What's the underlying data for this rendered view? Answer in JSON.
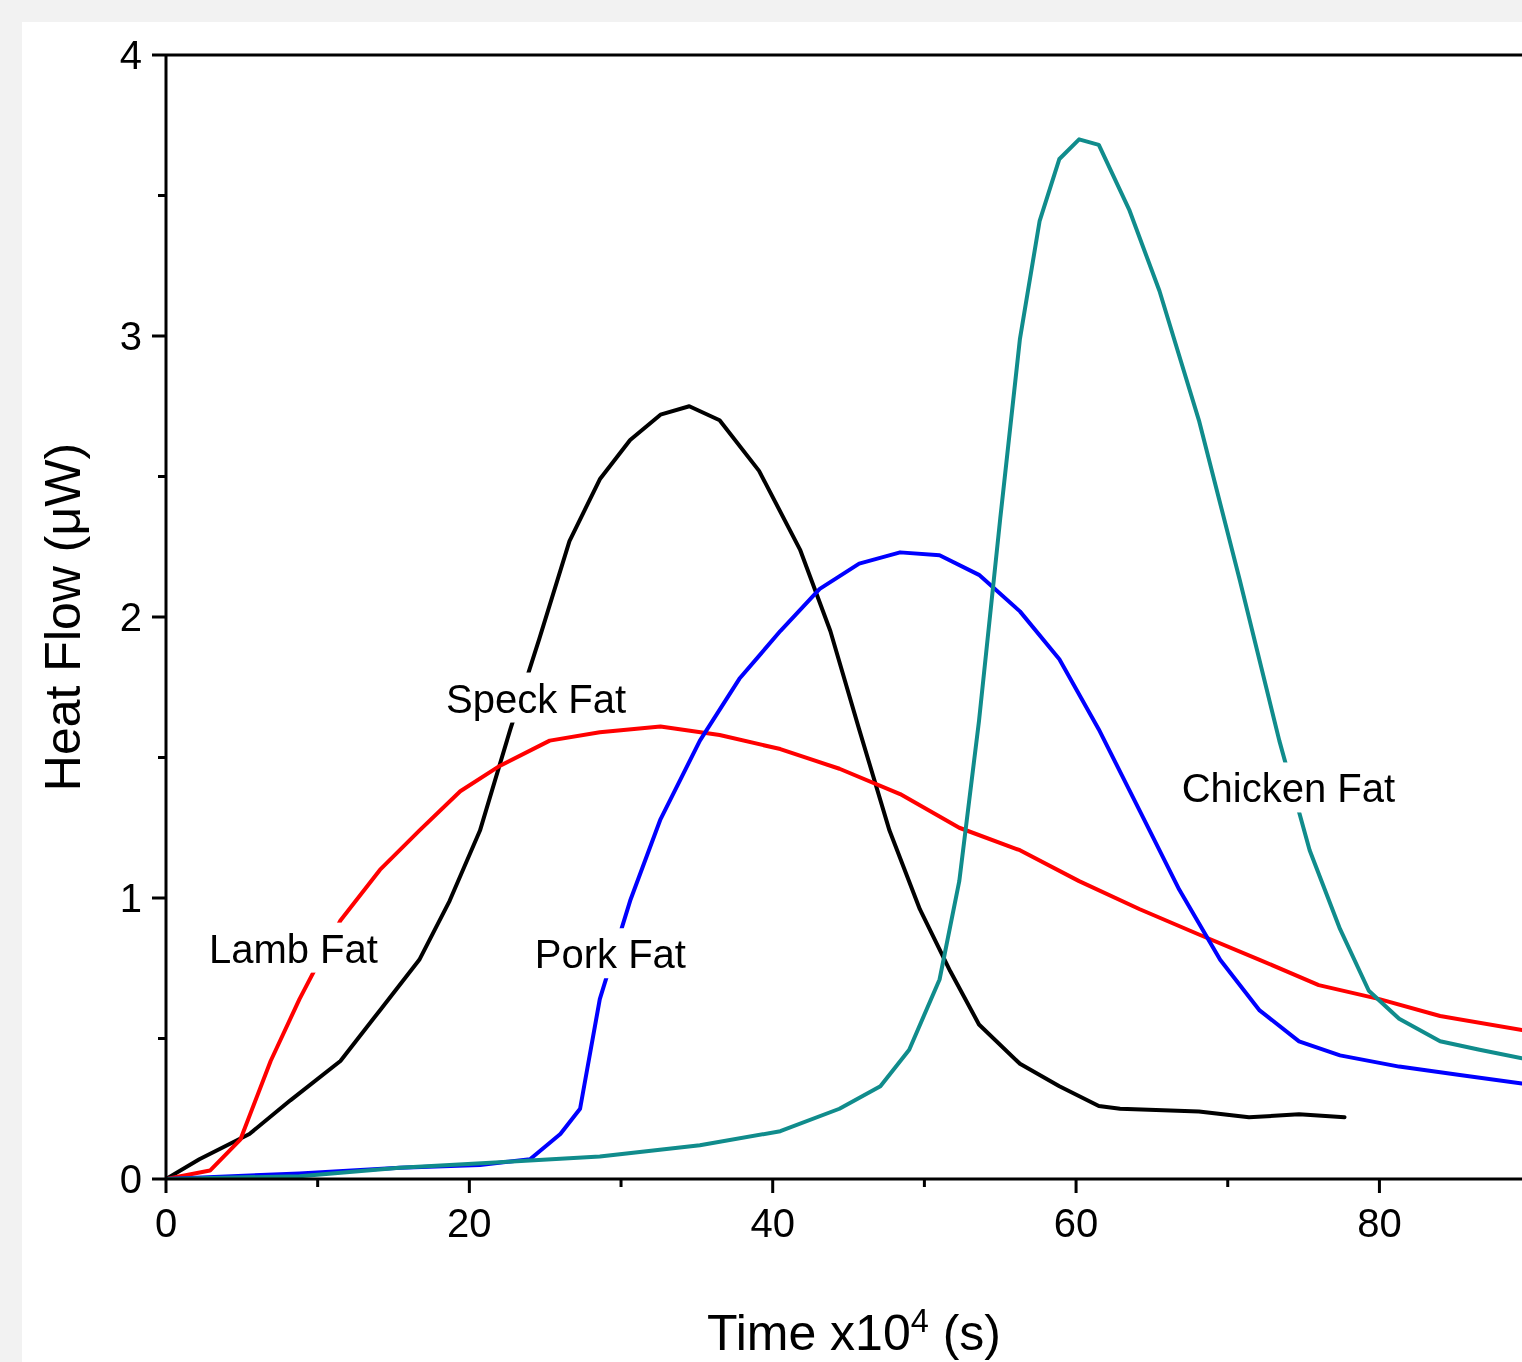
{
  "chart_data": {
    "type": "line",
    "xlabel": "Time x10$^{4}$ (s)",
    "ylabel": "Heat Flow (μW)",
    "xlim": [
      0,
      89.4
    ],
    "ylim": [
      0,
      4
    ],
    "xticks": [
      0,
      {
        "value": 10,
        "label": null
      },
      20,
      {
        "value": 30,
        "label": null
      },
      40,
      {
        "value": 50,
        "label": null
      },
      60,
      {
        "value": 70,
        "label": null
      },
      80
    ],
    "yticks": [
      0,
      {
        "value": 0.5,
        "label": null
      },
      1,
      {
        "value": 1.5,
        "label": null
      },
      2,
      {
        "value": 2.5,
        "label": null
      },
      3,
      {
        "value": 3.5,
        "label": null
      },
      4
    ],
    "grid": false,
    "marker": "none",
    "line_style": "solid",
    "series": [
      {
        "name": "Speck Fat",
        "color": "#000000",
        "x": [
          0,
          2.2,
          5.5,
          8.2,
          11.5,
          14.1,
          16.7,
          18.7,
          20.7,
          22.7,
          24.6,
          26.6,
          28.6,
          30.6,
          32.6,
          34.5,
          36.5,
          39.1,
          41.8,
          43.8,
          45.7,
          47.7,
          49.7,
          51.7,
          53.6,
          56.3,
          58.9,
          61.5,
          62.9,
          68.1,
          71.4,
          74.7,
          77.7
        ],
        "values": [
          0,
          0.07,
          0.16,
          0.28,
          0.42,
          0.6,
          0.78,
          0.99,
          1.24,
          1.6,
          1.92,
          2.27,
          2.49,
          2.63,
          2.72,
          2.75,
          2.7,
          2.52,
          2.24,
          1.95,
          1.6,
          1.24,
          0.96,
          0.74,
          0.55,
          0.41,
          0.33,
          0.26,
          0.25,
          0.24,
          0.22,
          0.23,
          0.22
        ]
      },
      {
        "name": "Lamb Fat",
        "color": "#ff0000",
        "x": [
          0,
          2.9,
          4.9,
          6.9,
          8.8,
          11.5,
          14.1,
          16.7,
          19.4,
          22,
          25.3,
          28.6,
          32.6,
          36.5,
          40.5,
          44.4,
          48.4,
          52.3,
          56.3,
          60.2,
          64.2,
          68.1,
          72.1,
          76,
          80,
          84,
          89.4
        ],
        "values": [
          0,
          0.03,
          0.14,
          0.42,
          0.64,
          0.92,
          1.1,
          1.24,
          1.38,
          1.47,
          1.56,
          1.59,
          1.61,
          1.58,
          1.53,
          1.46,
          1.37,
          1.25,
          1.17,
          1.06,
          0.96,
          0.87,
          0.78,
          0.69,
          0.64,
          0.58,
          0.53
        ]
      },
      {
        "name": "Pork Fat",
        "color": "#0000ff",
        "x": [
          0,
          8.8,
          15.4,
          20.7,
          24,
          26,
          27.3,
          28.6,
          30.6,
          32.6,
          35.2,
          37.8,
          40.5,
          43.1,
          45.7,
          48.4,
          51,
          53.6,
          56.3,
          58.9,
          61.5,
          64.2,
          66.8,
          69.5,
          72.1,
          74.7,
          77.4,
          81.3,
          85.3,
          89.4
        ],
        "values": [
          0,
          0.02,
          0.04,
          0.05,
          0.07,
          0.16,
          0.25,
          0.64,
          0.99,
          1.28,
          1.56,
          1.78,
          1.95,
          2.1,
          2.19,
          2.23,
          2.22,
          2.15,
          2.02,
          1.85,
          1.6,
          1.31,
          1.03,
          0.78,
          0.6,
          0.49,
          0.44,
          0.4,
          0.37,
          0.34
        ]
      },
      {
        "name": "Chicken Fat",
        "color": "#108c8c",
        "x": [
          0,
          8.8,
          15.4,
          22,
          28.6,
          35.2,
          40.5,
          44.4,
          47.1,
          49,
          51,
          52.3,
          53.6,
          55,
          56.3,
          57.6,
          58.9,
          60.2,
          61.5,
          63.5,
          65.5,
          68.1,
          70.8,
          73.4,
          75.4,
          77.4,
          79.3,
          81.3,
          84,
          86.6,
          89.4
        ],
        "values": [
          0,
          0.01,
          0.04,
          0.06,
          0.08,
          0.12,
          0.17,
          0.25,
          0.33,
          0.46,
          0.71,
          1.06,
          1.63,
          2.35,
          2.99,
          3.41,
          3.63,
          3.7,
          3.68,
          3.45,
          3.16,
          2.7,
          2.13,
          1.56,
          1.17,
          0.89,
          0.67,
          0.57,
          0.49,
          0.46,
          0.43
        ]
      }
    ]
  }
}
